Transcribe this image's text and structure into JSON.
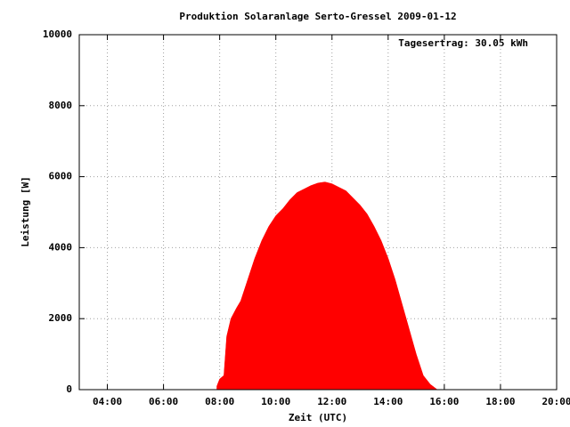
{
  "chart_data": {
    "type": "area",
    "title": "Produktion Solaranlage Serto-Gressel 2009-01-12",
    "annotation": "Tagesertrag: 30.05 kWh",
    "xlabel": "Zeit (UTC)",
    "ylabel": "Leistung [W]",
    "x": [
      7.9,
      8.0,
      8.15,
      8.25,
      8.4,
      8.6,
      8.75,
      9.0,
      9.25,
      9.5,
      9.75,
      10.0,
      10.25,
      10.5,
      10.75,
      11.0,
      11.25,
      11.5,
      11.75,
      12.0,
      12.25,
      12.5,
      12.75,
      13.0,
      13.25,
      13.5,
      13.75,
      14.0,
      14.25,
      14.5,
      14.75,
      15.0,
      15.25,
      15.5,
      15.75
    ],
    "values": [
      100,
      300,
      400,
      1500,
      2000,
      2300,
      2500,
      3100,
      3700,
      4200,
      4600,
      4900,
      5100,
      5350,
      5550,
      5650,
      5750,
      5820,
      5850,
      5800,
      5700,
      5600,
      5400,
      5200,
      4950,
      4600,
      4200,
      3700,
      3100,
      2400,
      1700,
      1000,
      400,
      150,
      0
    ],
    "color": "#ff0000",
    "xlim": [
      3,
      20
    ],
    "xticks": [
      {
        "value": 4,
        "label": "04:00"
      },
      {
        "value": 6,
        "label": "06:00"
      },
      {
        "value": 8,
        "label": "08:00"
      },
      {
        "value": 10,
        "label": "10:00"
      },
      {
        "value": 12,
        "label": "12:00"
      },
      {
        "value": 14,
        "label": "14:00"
      },
      {
        "value": 16,
        "label": "16:00"
      },
      {
        "value": 18,
        "label": "18:00"
      },
      {
        "value": 20,
        "label": "20:00"
      }
    ],
    "ylim": [
      0,
      10000
    ],
    "yticks": [
      0,
      2000,
      4000,
      6000,
      8000,
      10000
    ],
    "grid": true
  }
}
